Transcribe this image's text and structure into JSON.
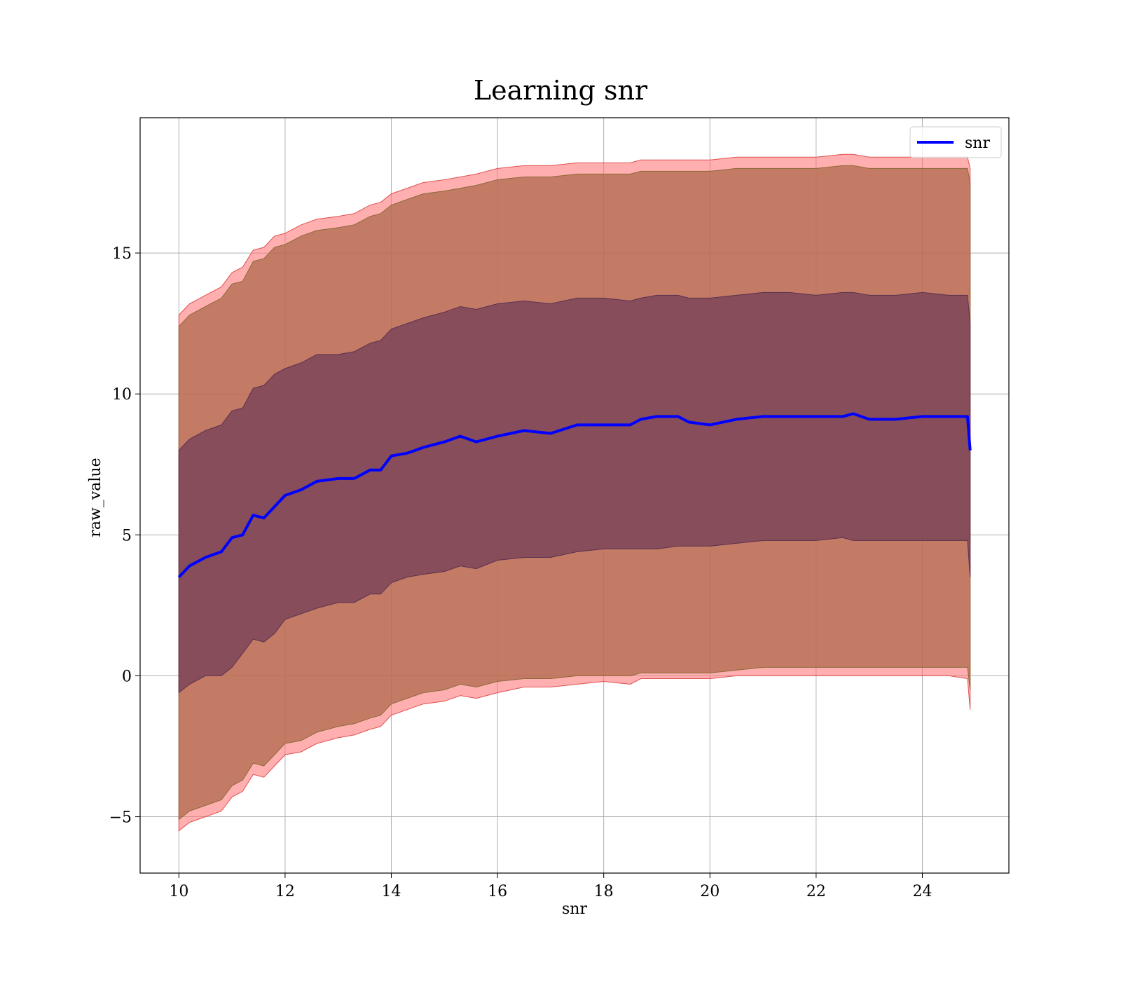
{
  "chart_data": {
    "type": "line",
    "title": "Learning snr",
    "xlabel": "snr",
    "ylabel": "raw_value",
    "xlim": [
      9.27,
      25.63
    ],
    "ylim": [
      -7.0,
      19.8
    ],
    "x_ticks": [
      10,
      12,
      14,
      16,
      18,
      20,
      22,
      24
    ],
    "y_ticks": [
      -5,
      0,
      5,
      10,
      15
    ],
    "x_tick_labels": [
      "10",
      "12",
      "14",
      "16",
      "18",
      "20",
      "22",
      "24"
    ],
    "y_tick_labels": [
      "−5",
      "0",
      "5",
      "10",
      "15"
    ],
    "grid": true,
    "legend": {
      "position": "top-right",
      "entries": [
        "snr"
      ]
    },
    "colors": {
      "mean_line": "#0000ff",
      "outer_band": "#ff6e6e",
      "mid_band": "#b06a4c",
      "inner_band": "#6e3a55",
      "grid": "#b0b0b0"
    },
    "series": [
      {
        "name": "snr",
        "x": [
          10.0,
          10.2,
          10.5,
          10.8,
          11.0,
          11.2,
          11.4,
          11.6,
          11.8,
          12.0,
          12.3,
          12.6,
          13.0,
          13.3,
          13.6,
          13.8,
          14.0,
          14.3,
          14.6,
          15.0,
          15.3,
          15.6,
          16.0,
          16.5,
          17.0,
          17.5,
          18.0,
          18.5,
          18.7,
          19.0,
          19.4,
          19.6,
          20.0,
          20.5,
          21.0,
          21.5,
          22.0,
          22.5,
          22.7,
          23.0,
          23.5,
          24.0,
          24.5,
          24.85,
          24.9
        ],
        "mean": [
          3.5,
          3.9,
          4.2,
          4.4,
          4.9,
          5.0,
          5.7,
          5.6,
          6.0,
          6.4,
          6.6,
          6.9,
          7.0,
          7.0,
          7.3,
          7.3,
          7.8,
          7.9,
          8.1,
          8.3,
          8.5,
          8.3,
          8.5,
          8.7,
          8.6,
          8.9,
          8.9,
          8.9,
          9.1,
          9.2,
          9.2,
          9.0,
          8.9,
          9.1,
          9.2,
          9.2,
          9.2,
          9.2,
          9.3,
          9.1,
          9.1,
          9.2,
          9.2,
          9.2,
          8.0
        ],
        "upper_inner": [
          8.0,
          8.4,
          8.7,
          8.9,
          9.4,
          9.5,
          10.2,
          10.3,
          10.7,
          10.9,
          11.1,
          11.4,
          11.4,
          11.5,
          11.8,
          11.9,
          12.3,
          12.5,
          12.7,
          12.9,
          13.1,
          13.0,
          13.2,
          13.3,
          13.2,
          13.4,
          13.4,
          13.3,
          13.4,
          13.5,
          13.5,
          13.4,
          13.4,
          13.5,
          13.6,
          13.6,
          13.5,
          13.6,
          13.6,
          13.5,
          13.5,
          13.6,
          13.5,
          13.5,
          12.5
        ],
        "lower_inner": [
          -0.6,
          -0.3,
          0.0,
          0.0,
          0.3,
          0.8,
          1.3,
          1.2,
          1.5,
          2.0,
          2.2,
          2.4,
          2.6,
          2.6,
          2.9,
          2.9,
          3.3,
          3.5,
          3.6,
          3.7,
          3.9,
          3.8,
          4.1,
          4.2,
          4.2,
          4.4,
          4.5,
          4.5,
          4.5,
          4.5,
          4.6,
          4.6,
          4.6,
          4.7,
          4.8,
          4.8,
          4.8,
          4.9,
          4.8,
          4.8,
          4.8,
          4.8,
          4.8,
          4.8,
          3.5
        ],
        "upper_mid": [
          12.4,
          12.8,
          13.1,
          13.4,
          13.9,
          14.0,
          14.7,
          14.8,
          15.2,
          15.3,
          15.6,
          15.8,
          15.9,
          16.0,
          16.3,
          16.4,
          16.7,
          16.9,
          17.1,
          17.2,
          17.3,
          17.4,
          17.6,
          17.7,
          17.7,
          17.8,
          17.8,
          17.8,
          17.9,
          17.9,
          17.9,
          17.9,
          17.9,
          18.0,
          18.0,
          18.0,
          18.0,
          18.1,
          18.1,
          18.0,
          18.0,
          18.0,
          18.0,
          18.0,
          17.5
        ],
        "lower_mid": [
          -5.1,
          -4.8,
          -4.6,
          -4.4,
          -3.9,
          -3.7,
          -3.1,
          -3.2,
          -2.8,
          -2.4,
          -2.3,
          -2.0,
          -1.8,
          -1.7,
          -1.5,
          -1.4,
          -1.0,
          -0.8,
          -0.6,
          -0.5,
          -0.3,
          -0.4,
          -0.2,
          -0.1,
          -0.1,
          0.0,
          0.0,
          0.0,
          0.1,
          0.1,
          0.1,
          0.1,
          0.1,
          0.2,
          0.3,
          0.3,
          0.3,
          0.3,
          0.3,
          0.3,
          0.3,
          0.3,
          0.3,
          0.3,
          -0.5
        ],
        "upper_outer": [
          12.8,
          13.2,
          13.5,
          13.8,
          14.3,
          14.5,
          15.1,
          15.2,
          15.6,
          15.7,
          16.0,
          16.2,
          16.3,
          16.4,
          16.7,
          16.8,
          17.1,
          17.3,
          17.5,
          17.6,
          17.7,
          17.8,
          18.0,
          18.1,
          18.1,
          18.2,
          18.2,
          18.2,
          18.3,
          18.3,
          18.3,
          18.3,
          18.3,
          18.4,
          18.4,
          18.4,
          18.4,
          18.5,
          18.5,
          18.4,
          18.4,
          18.4,
          18.4,
          18.4,
          18.0
        ],
        "lower_outer": [
          -5.5,
          -5.2,
          -5.0,
          -4.8,
          -4.3,
          -4.1,
          -3.5,
          -3.6,
          -3.2,
          -2.8,
          -2.7,
          -2.4,
          -2.2,
          -2.1,
          -1.9,
          -1.8,
          -1.4,
          -1.2,
          -1.0,
          -0.9,
          -0.7,
          -0.8,
          -0.6,
          -0.4,
          -0.4,
          -0.3,
          -0.2,
          -0.3,
          -0.1,
          -0.1,
          -0.1,
          -0.1,
          -0.1,
          0.0,
          0.0,
          0.0,
          0.0,
          0.0,
          0.0,
          0.0,
          0.0,
          0.0,
          0.0,
          -0.1,
          -1.2
        ]
      }
    ]
  }
}
